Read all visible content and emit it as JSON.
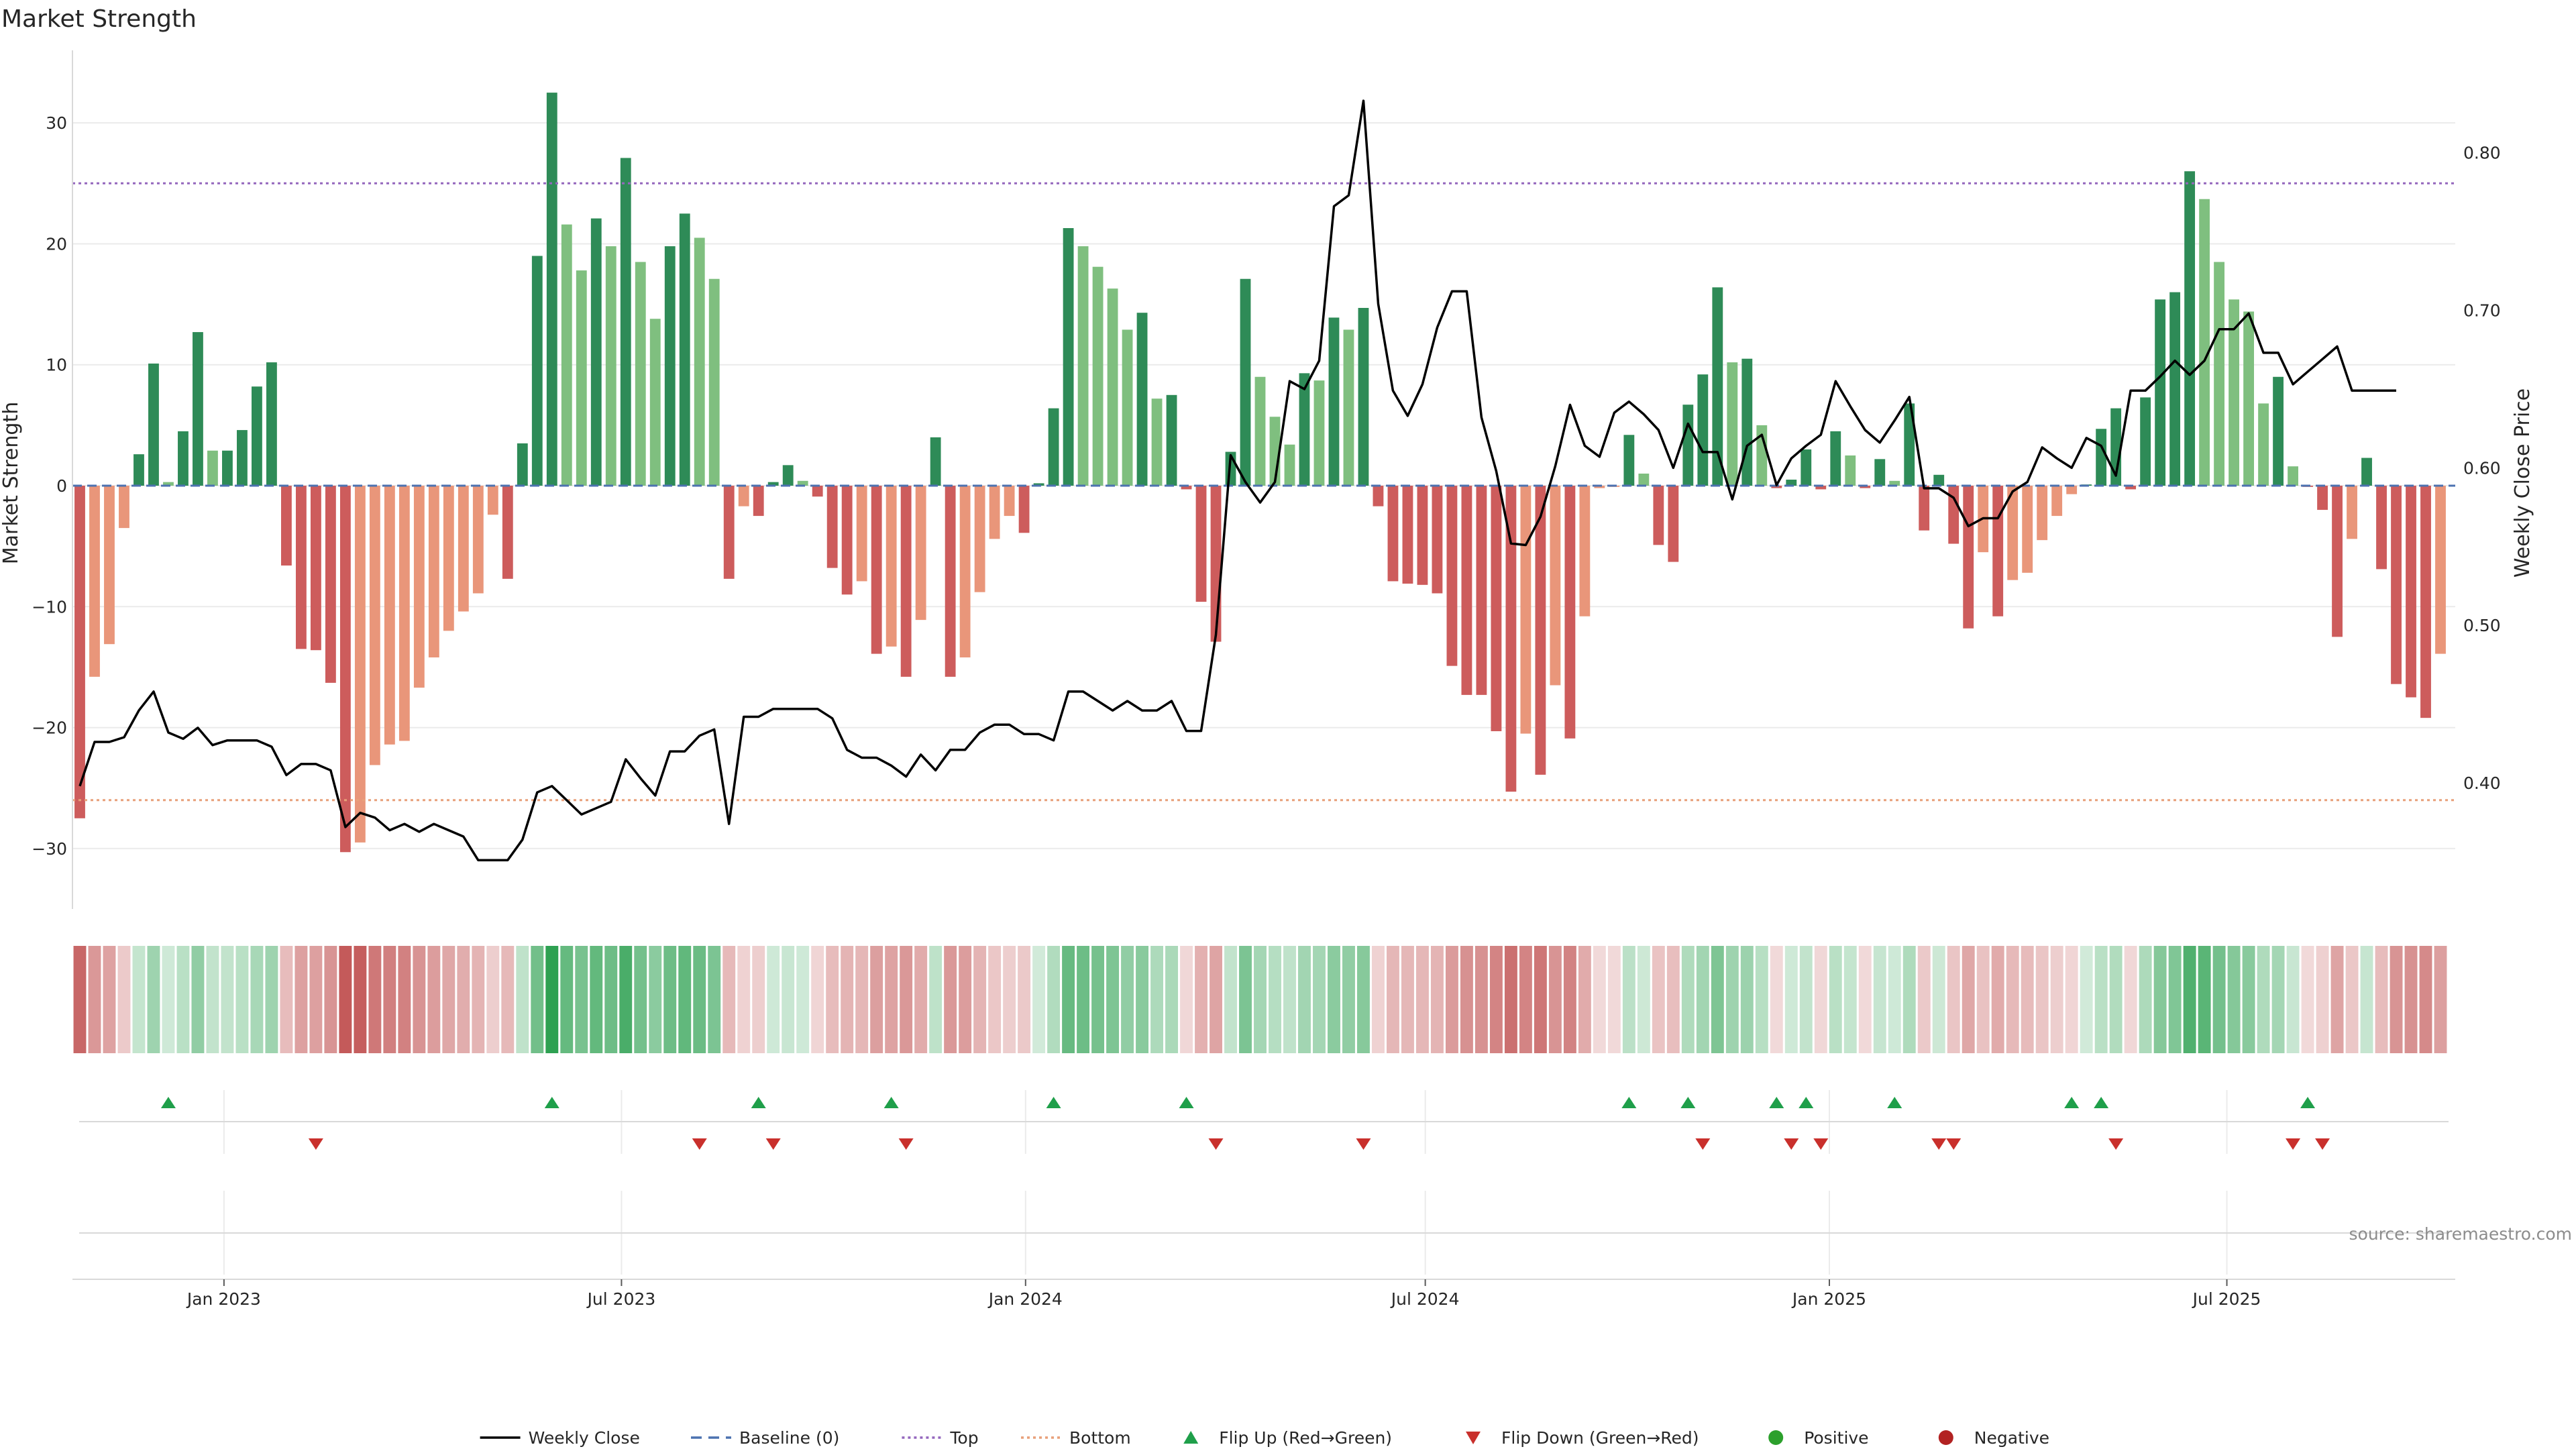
{
  "chart_data": {
    "type": "bar",
    "title": "Market Strength",
    "ylabel": "Market Strength",
    "y2label": "Weekly Close Price",
    "source": "source: sharemaestro.com",
    "ylim": [
      -35,
      36
    ],
    "yticks": [
      -30,
      -20,
      -10,
      0,
      10,
      20,
      30
    ],
    "y2lim": [
      0.32,
      0.865
    ],
    "y2ticks": [
      0.4,
      0.5,
      0.6,
      0.7,
      0.8
    ],
    "y2tick_labels": [
      "0.40",
      "0.50",
      "0.60",
      "0.70",
      "0.80"
    ],
    "top_level": 25,
    "bottom_level": -26,
    "grid": true,
    "legend_position": "bottom-center",
    "x_range": [
      "2022-10-24",
      "2025-10-13"
    ],
    "xticks": [
      {
        "date": "2023-01-01",
        "label": "Jan 2023"
      },
      {
        "date": "2023-07-01",
        "label": "Jul 2023"
      },
      {
        "date": "2024-01-01",
        "label": "Jan 2024"
      },
      {
        "date": "2024-07-01",
        "label": "Jul 2024"
      },
      {
        "date": "2025-01-01",
        "label": "Jan 2025"
      },
      {
        "date": "2025-07-01",
        "label": "Jul 2025"
      }
    ],
    "start_week": "2022-10-24",
    "strength": [
      -27.5,
      -15.8,
      -13.1,
      -3.5,
      2.6,
      10.1,
      0.3,
      4.5,
      12.7,
      2.9,
      2.9,
      4.6,
      8.2,
      10.2,
      -6.6,
      -13.5,
      -13.6,
      -16.3,
      -30.3,
      -29.5,
      -23.1,
      -21.4,
      -21.1,
      -16.7,
      -14.2,
      -12.0,
      -10.4,
      -8.9,
      -2.4,
      -7.7,
      3.5,
      19.0,
      32.5,
      21.6,
      17.8,
      22.1,
      19.8,
      27.1,
      18.5,
      13.8,
      19.8,
      22.5,
      20.5,
      17.1,
      -7.7,
      -1.7,
      -2.5,
      0.3,
      1.7,
      0.4,
      -0.9,
      -6.8,
      -9.0,
      -7.9,
      -13.9,
      -13.3,
      -15.8,
      -11.1,
      4.0,
      -15.8,
      -14.2,
      -8.8,
      -4.4,
      -2.5,
      -3.9,
      0.2,
      6.4,
      21.3,
      19.8,
      18.1,
      16.3,
      12.9,
      14.3,
      7.2,
      7.5,
      -0.3,
      -9.6,
      -12.9,
      2.8,
      17.1,
      9.0,
      5.7,
      3.4,
      9.3,
      8.7,
      13.9,
      12.9,
      14.7,
      -1.7,
      -7.9,
      -8.1,
      -8.2,
      -8.9,
      -14.9,
      -17.3,
      -17.3,
      -20.3,
      -25.3,
      -20.5,
      -23.9,
      -16.5,
      -20.9,
      -10.8,
      -0.2,
      -0.1,
      4.2,
      1.0,
      -4.9,
      -6.3,
      6.7,
      9.2,
      16.4,
      10.2,
      10.5,
      5.0,
      -0.2,
      0.5,
      3.0,
      -0.3,
      4.5,
      2.5,
      -0.2,
      2.2,
      0.4,
      6.8,
      -3.7,
      0.9,
      -4.8,
      -11.8,
      -5.5,
      -10.8,
      -7.8,
      -7.2,
      -4.5,
      -2.5,
      -0.7,
      0.1,
      4.7,
      6.4,
      -0.3,
      7.3,
      15.4,
      16.0,
      26.0,
      23.7,
      18.5,
      15.4,
      14.4,
      6.8,
      9.0,
      1.6,
      -0.1,
      -2.0,
      -12.5,
      -4.4,
      2.3,
      -6.9,
      -16.4,
      -17.5,
      -19.2,
      -13.9
    ],
    "close": [
      0.398,
      0.426,
      0.426,
      0.429,
      0.446,
      0.458,
      0.432,
      0.428,
      0.435,
      0.424,
      0.427,
      0.427,
      0.427,
      0.423,
      0.405,
      0.412,
      0.412,
      0.408,
      0.372,
      0.381,
      0.378,
      0.37,
      0.374,
      0.369,
      0.374,
      0.37,
      0.366,
      0.351,
      0.351,
      0.351,
      0.364,
      0.394,
      0.398,
      0.389,
      0.38,
      0.384,
      0.388,
      0.415,
      0.403,
      0.392,
      0.42,
      0.42,
      0.43,
      0.434,
      0.374,
      0.442,
      0.442,
      0.447,
      0.447,
      0.447,
      0.447,
      0.441,
      0.421,
      0.416,
      0.416,
      0.411,
      0.404,
      0.418,
      0.408,
      0.421,
      0.421,
      0.432,
      0.437,
      0.437,
      0.431,
      0.431,
      0.427,
      0.458,
      0.458,
      0.452,
      0.446,
      0.452,
      0.446,
      0.446,
      0.452,
      0.433,
      0.433,
      0.494,
      0.608,
      0.591,
      0.578,
      0.591,
      0.655,
      0.65,
      0.668,
      0.766,
      0.773,
      0.833,
      0.704,
      0.649,
      0.633,
      0.653,
      0.689,
      0.712,
      0.712,
      0.632,
      0.598,
      0.552,
      0.551,
      0.569,
      0.601,
      0.64,
      0.614,
      0.607,
      0.635,
      0.642,
      0.634,
      0.624,
      0.6,
      0.628,
      0.61,
      0.61,
      0.58,
      0.614,
      0.621,
      0.589,
      0.606,
      0.614,
      0.621,
      0.655,
      0.639,
      0.624,
      0.616,
      0.63,
      0.645,
      0.587,
      0.587,
      0.581,
      0.563,
      0.568,
      0.568,
      0.585,
      0.591,
      0.613,
      0.606,
      0.6,
      0.619,
      0.614,
      0.595,
      0.649,
      0.649,
      0.658,
      0.668,
      0.659,
      0.668,
      0.688,
      0.688,
      0.698,
      0.673,
      0.673,
      0.653,
      0.661,
      0.669,
      0.677,
      0.649,
      0.649,
      0.649,
      0.649
    ],
    "heat_strip": "Weekly strength heat strip (red = negative, green = positive)",
    "flips_up": [
      "2022-12-05",
      "2023-06-05",
      "2023-09-11",
      "2023-11-13",
      "2024-01-29",
      "2024-04-01",
      "2024-10-28",
      "2024-11-25",
      "2025-01-06",
      "2025-01-20",
      "2025-03-03",
      "2025-05-26",
      "2025-06-09",
      "2025-09-15"
    ],
    "flips_down": [
      "2023-02-13",
      "2023-08-14",
      "2023-09-18",
      "2023-11-20",
      "2024-04-15",
      "2024-06-24",
      "2024-12-02",
      "2025-01-13",
      "2025-01-27",
      "2025-03-24",
      "2025-03-31",
      "2025-06-16",
      "2025-09-08",
      "2025-09-22"
    ],
    "legend": [
      {
        "name": "Weekly Close",
        "kind": "line",
        "color": "#000000"
      },
      {
        "name": "Baseline (0)",
        "kind": "dash",
        "color": "#4c72b0"
      },
      {
        "name": "Top",
        "kind": "dot",
        "color": "#9467bd"
      },
      {
        "name": "Bottom",
        "kind": "dot",
        "color": "#e8a07a"
      },
      {
        "name": "Flip Up (Red→Green)",
        "kind": "tri-up",
        "color": "#1f9f4a"
      },
      {
        "name": "Flip Down (Green→Red)",
        "kind": "tri-down",
        "color": "#c9302c"
      },
      {
        "name": "Positive",
        "kind": "circle",
        "color": "#2ca02c"
      },
      {
        "name": "Negative",
        "kind": "circle",
        "color": "#b22222"
      }
    ]
  },
  "colors": {
    "pos_strong": "#2e8b57",
    "pos_light": "#7fbf7f",
    "neg_strong": "#cd5c5c",
    "neg_light": "#e9967a",
    "grid": "#ebebeb",
    "axis": "#d9d9d9"
  }
}
